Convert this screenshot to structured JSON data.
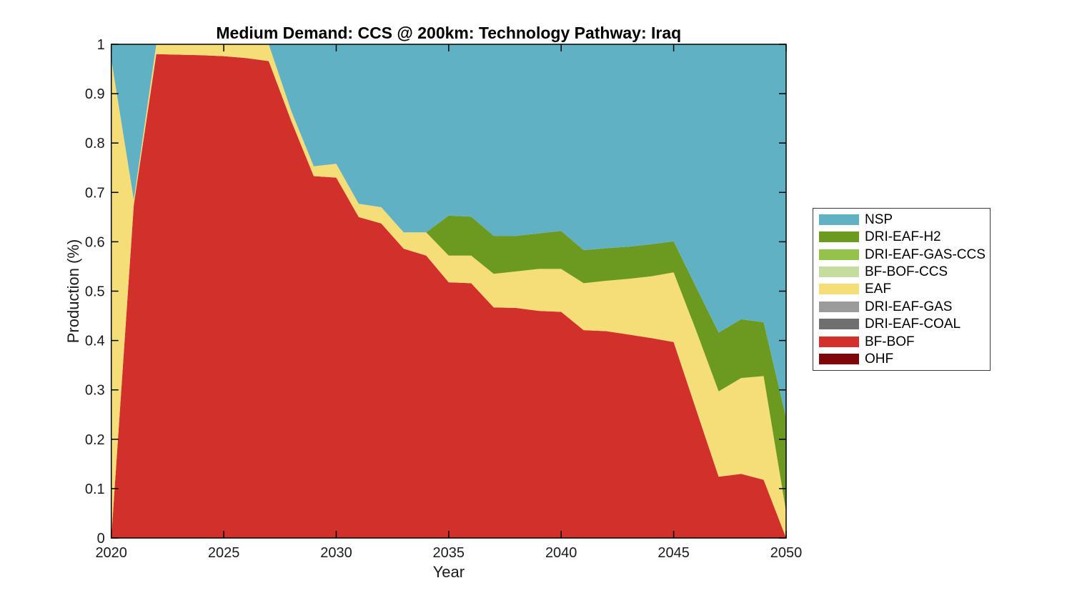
{
  "chart_data": {
    "type": "area",
    "stacked": true,
    "title": "Medium Demand: CCS @ 200km: Technology Pathway: Iraq",
    "xlabel": "Year",
    "ylabel": "Production (%)",
    "xlim": [
      2020,
      2050
    ],
    "ylim": [
      0,
      1
    ],
    "xticks": [
      2020,
      2025,
      2030,
      2035,
      2040,
      2045,
      2050
    ],
    "xtick_labels": [
      "2020",
      "2025",
      "2030",
      "2035",
      "2040",
      "2045",
      "2050"
    ],
    "yticks": [
      0,
      0.1,
      0.2,
      0.3,
      0.4,
      0.5,
      0.6,
      0.7,
      0.8,
      0.9,
      1
    ],
    "ytick_labels": [
      "0",
      "0.1",
      "0.2",
      "0.3",
      "0.4",
      "0.5",
      "0.6",
      "0.7",
      "0.8",
      "0.9",
      "1"
    ],
    "grid": false,
    "legend_position": "right-outside",
    "x": [
      2020,
      2021,
      2022,
      2023,
      2024,
      2025,
      2026,
      2027,
      2028,
      2029,
      2030,
      2031,
      2032,
      2033,
      2034,
      2035,
      2036,
      2037,
      2038,
      2039,
      2040,
      2041,
      2042,
      2043,
      2044,
      2045,
      2046,
      2047,
      2048,
      2049,
      2050
    ],
    "series": [
      {
        "name": "NSP",
        "color": "#61B1C5",
        "values": [
          0.03,
          0.315,
          0,
          0,
          0,
          0,
          0,
          0,
          0.135,
          0.247,
          0.242,
          0.323,
          0.33,
          0.381,
          0.381,
          0.347,
          0.349,
          0.388,
          0.388,
          0.383,
          0.378,
          0.417,
          0.413,
          0.41,
          0.405,
          0.399,
          0.492,
          0.584,
          0.557,
          0.563,
          0.757
        ]
      },
      {
        "name": "DRI-EAF-H2",
        "color": "#6C9A20",
        "values": [
          0,
          0,
          0,
          0,
          0,
          0,
          0,
          0,
          0,
          0,
          0,
          0,
          0,
          0,
          0,
          0.081,
          0.079,
          0.077,
          0.072,
          0.072,
          0.077,
          0.067,
          0.066,
          0.065,
          0.065,
          0.063,
          0.088,
          0.119,
          0.119,
          0.109,
          0.19
        ]
      },
      {
        "name": "DRI-EAF-GAS-CCS",
        "color": "#93C34B",
        "values": [
          0,
          0,
          0,
          0,
          0,
          0,
          0,
          0,
          0,
          0,
          0,
          0,
          0,
          0,
          0,
          0,
          0,
          0,
          0,
          0,
          0,
          0,
          0,
          0,
          0,
          0,
          0,
          0,
          0,
          0,
          0
        ]
      },
      {
        "name": "BF-BOF-CCS",
        "color": "#C6DB9E",
        "values": [
          0,
          0,
          0,
          0,
          0,
          0,
          0,
          0,
          0,
          0,
          0,
          0,
          0,
          0,
          0,
          0,
          0,
          0,
          0,
          0,
          0,
          0,
          0,
          0,
          0,
          0,
          0,
          0,
          0,
          0,
          0
        ]
      },
      {
        "name": "EAF",
        "color": "#F5DD77",
        "values": [
          0.97,
          0.01,
          0.02,
          0.021,
          0.022,
          0.024,
          0.028,
          0.034,
          0.02,
          0.02,
          0.028,
          0.027,
          0.033,
          0.033,
          0.047,
          0.054,
          0.056,
          0.068,
          0.074,
          0.085,
          0.087,
          0.095,
          0.102,
          0.113,
          0.125,
          0.141,
          0.16,
          0.173,
          0.194,
          0.21,
          0.053
        ]
      },
      {
        "name": "DRI-EAF-GAS",
        "color": "#9B9B9B",
        "values": [
          0,
          0,
          0,
          0,
          0,
          0,
          0,
          0,
          0,
          0,
          0,
          0,
          0,
          0,
          0,
          0,
          0,
          0,
          0,
          0,
          0,
          0,
          0,
          0,
          0,
          0,
          0,
          0,
          0,
          0,
          0
        ]
      },
      {
        "name": "DRI-EAF-COAL",
        "color": "#6F6F6F",
        "values": [
          0,
          0,
          0,
          0,
          0,
          0,
          0,
          0,
          0,
          0,
          0,
          0,
          0,
          0,
          0,
          0,
          0,
          0,
          0,
          0,
          0,
          0,
          0,
          0,
          0,
          0,
          0,
          0,
          0,
          0,
          0
        ]
      },
      {
        "name": "BF-BOF",
        "color": "#D2302A",
        "values": [
          0,
          0.675,
          0.98,
          0.979,
          0.978,
          0.976,
          0.972,
          0.966,
          0.845,
          0.733,
          0.73,
          0.65,
          0.637,
          0.586,
          0.572,
          0.518,
          0.516,
          0.467,
          0.466,
          0.46,
          0.458,
          0.421,
          0.419,
          0.412,
          0.405,
          0.397,
          0.26,
          0.124,
          0.13,
          0.118,
          0
        ]
      },
      {
        "name": "OHF",
        "color": "#7D0808",
        "values": [
          0,
          0,
          0,
          0,
          0,
          0,
          0,
          0,
          0,
          0,
          0,
          0,
          0,
          0,
          0,
          0,
          0,
          0,
          0,
          0,
          0,
          0,
          0,
          0,
          0,
          0,
          0,
          0,
          0,
          0,
          0
        ]
      }
    ]
  }
}
